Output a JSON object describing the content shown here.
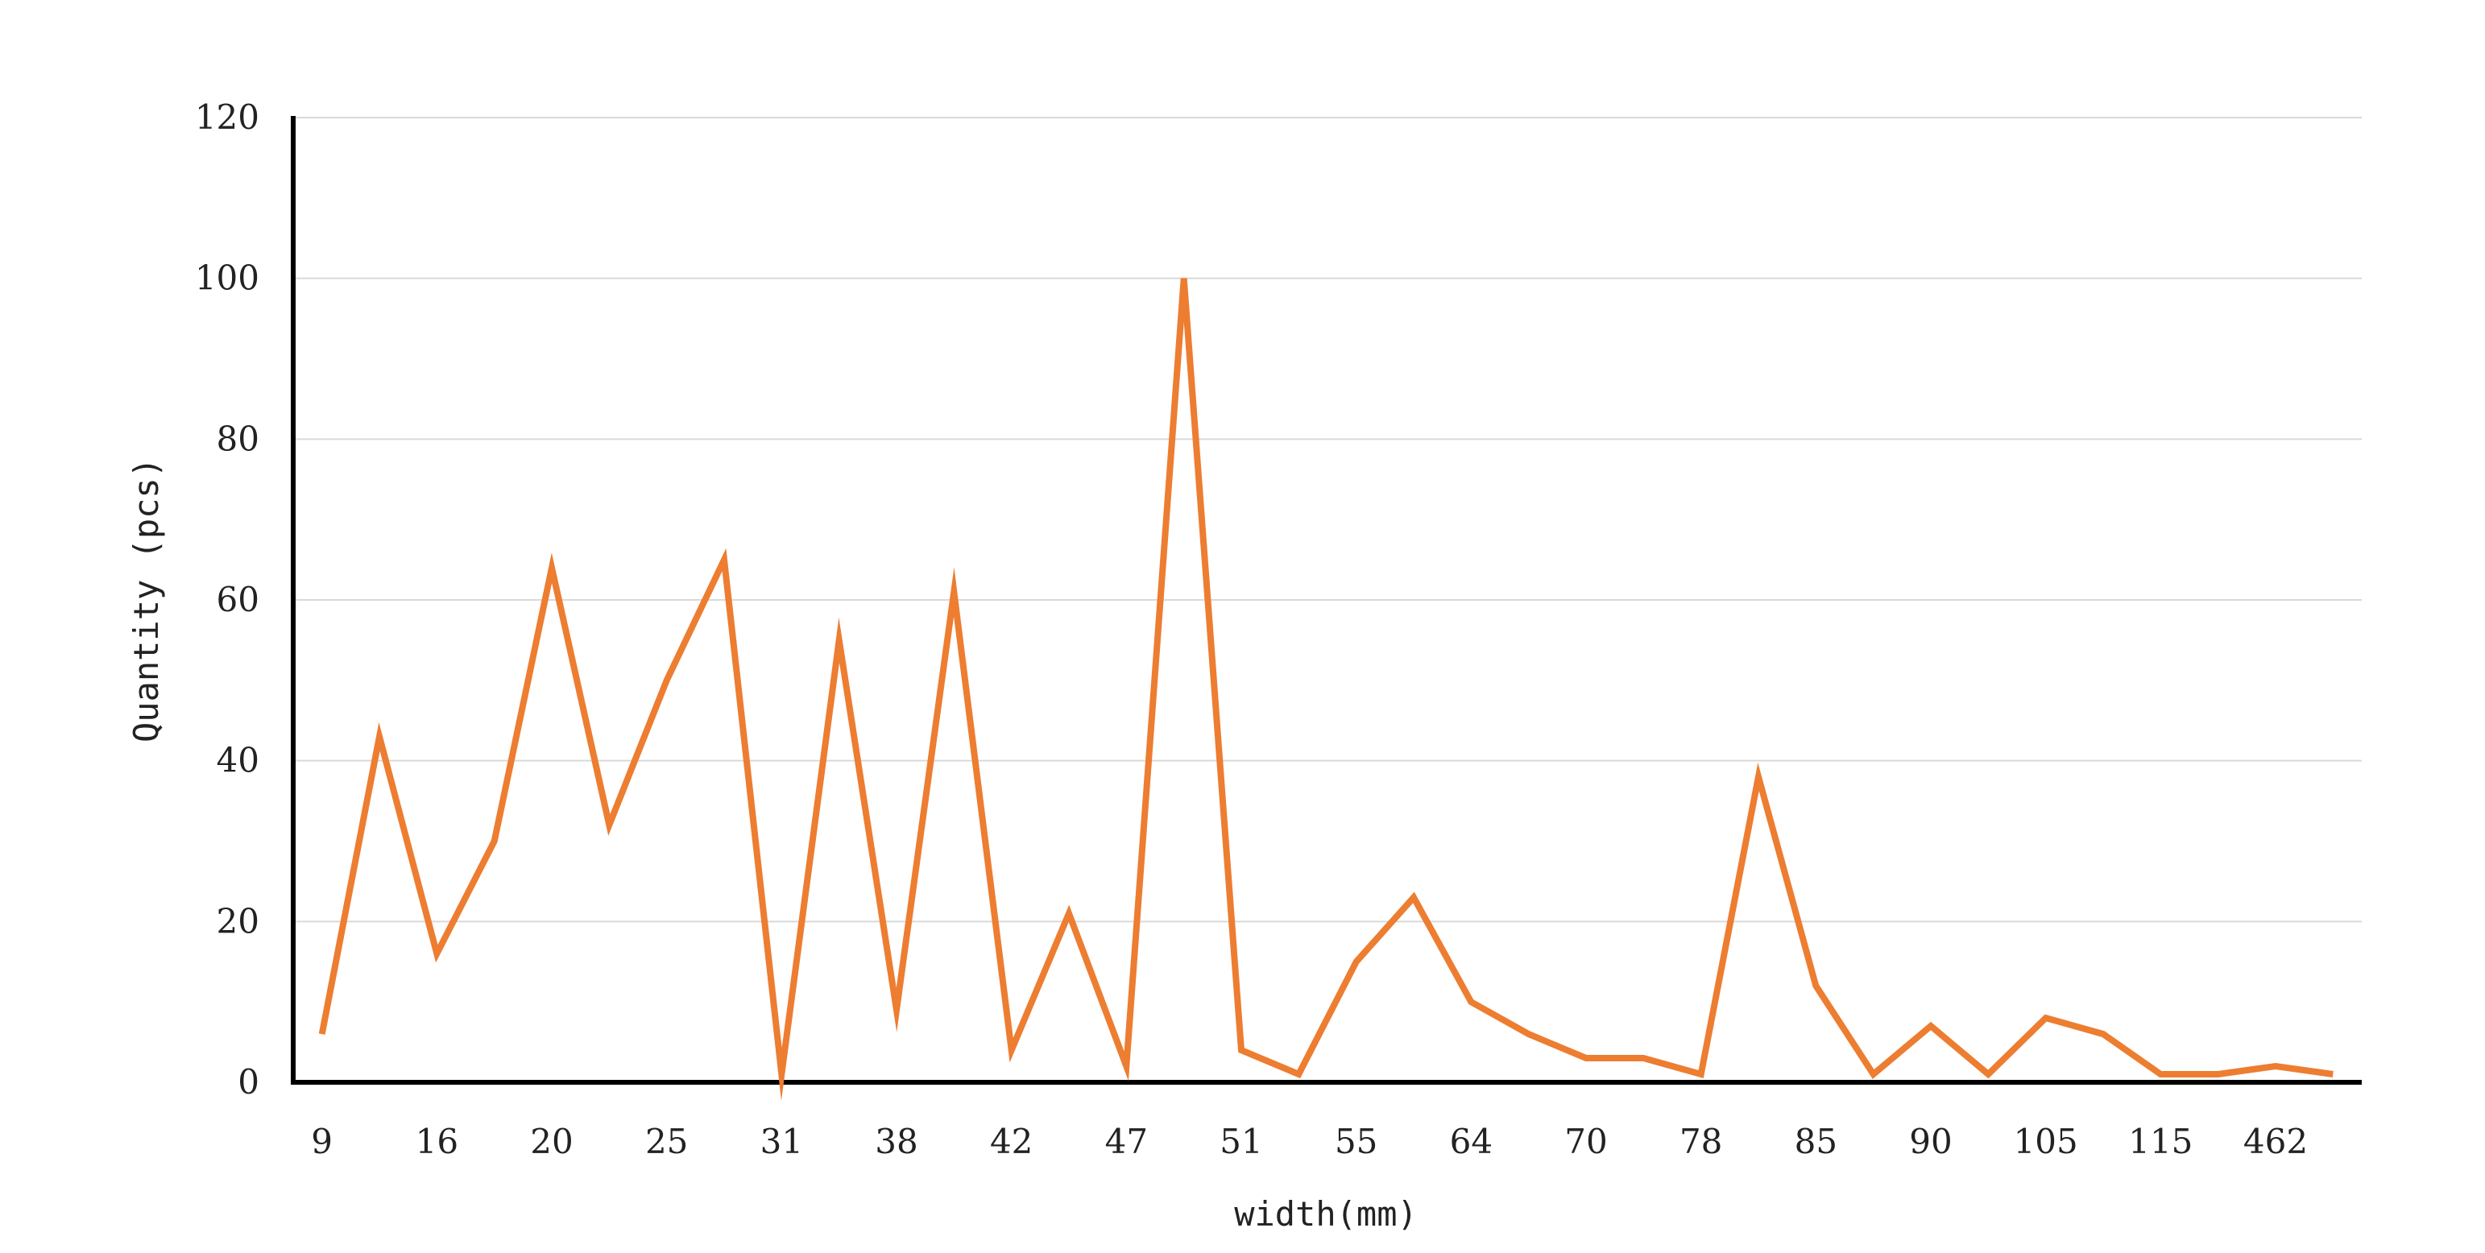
{
  "chart_data": {
    "type": "line",
    "title": "",
    "xlabel": "width(mm)",
    "ylabel": "Quantity (pcs)",
    "ylim": [
      0,
      120
    ],
    "yticks": [
      "0",
      "20",
      "40",
      "60",
      "80",
      "100",
      "120"
    ],
    "grid": "horizontal",
    "legend": "none",
    "x_tick_labels": [
      "9",
      "16",
      "20",
      "25",
      "31",
      "38",
      "42",
      "47",
      "51",
      "55",
      "64",
      "70",
      "78",
      "85",
      "90",
      "105",
      "115",
      "462"
    ],
    "x_tick_every": 2,
    "series": [
      {
        "color": "#ED7D31",
        "values": [
          6,
          43,
          16,
          30,
          64,
          32,
          50,
          65,
          1,
          55,
          9,
          61,
          4,
          21,
          2,
          100,
          4,
          1,
          15,
          23,
          10,
          6,
          3,
          3,
          1,
          38,
          12,
          1,
          7,
          1,
          8,
          6,
          1,
          1,
          2,
          1
        ]
      }
    ]
  }
}
